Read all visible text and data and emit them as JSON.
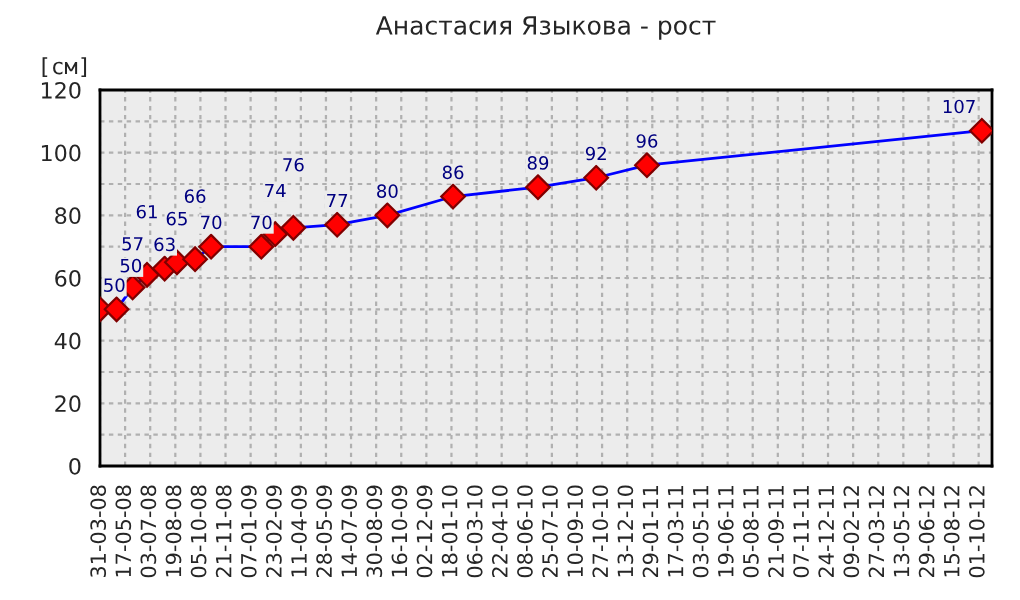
{
  "chart_data": {
    "type": "line",
    "title": "Анастасия Языкова - рост",
    "ylabel": "[см]",
    "x": [
      "2008-03-31",
      "2008-05-01",
      "2008-05-31",
      "2008-06-27",
      "2008-07-30",
      "2008-08-22",
      "2008-09-25",
      "2008-10-25",
      "2009-01-27",
      "2009-02-22",
      "2009-03-28",
      "2009-06-18",
      "2009-09-20",
      "2010-01-21",
      "2010-06-29",
      "2010-10-16",
      "2011-01-19",
      "2012-10-07"
    ],
    "series": [
      {
        "color": "#0000ff",
        "values": [
          50,
          50,
          57,
          61,
          63,
          65,
          66,
          70,
          70,
          74,
          76,
          77,
          80,
          86,
          89,
          92,
          96,
          107
        ]
      }
    ],
    "marker": "diamond",
    "data_labels": true,
    "grid": true,
    "ylim": [
      0,
      120
    ],
    "yticks": [
      0,
      {
        "value": 10,
        "label": null
      },
      20,
      {
        "value": 30,
        "label": null
      },
      40,
      {
        "value": 50,
        "label": null
      },
      60,
      {
        "value": 70,
        "label": null
      },
      80,
      {
        "value": 90,
        "label": null
      },
      100,
      {
        "value": 110,
        "label": null
      },
      120
    ],
    "xlim": [
      "2008-03-31",
      "2012-10-26"
    ],
    "xticks": [
      {
        "value": "2008-03-31",
        "label": "31-03-08"
      },
      {
        "value": "2008-05-17",
        "label": "17-05-08"
      },
      {
        "value": "2008-07-03",
        "label": "03-07-08"
      },
      {
        "value": "2008-08-19",
        "label": "19-08-08"
      },
      {
        "value": "2008-10-05",
        "label": "05-10-08"
      },
      {
        "value": "2008-11-21",
        "label": "21-11-08"
      },
      {
        "value": "2009-01-07",
        "label": "07-01-09"
      },
      {
        "value": "2009-02-23",
        "label": "23-02-09"
      },
      {
        "value": "2009-04-11",
        "label": "11-04-09"
      },
      {
        "value": "2009-05-28",
        "label": "28-05-09"
      },
      {
        "value": "2009-07-14",
        "label": "14-07-09"
      },
      {
        "value": "2009-08-30",
        "label": "30-08-09"
      },
      {
        "value": "2009-10-16",
        "label": "16-10-09"
      },
      {
        "value": "2009-12-02",
        "label": "02-12-09"
      },
      {
        "value": "2010-01-18",
        "label": "18-01-10"
      },
      {
        "value": "2010-03-06",
        "label": "06-03-10"
      },
      {
        "value": "2010-04-22",
        "label": "22-04-10"
      },
      {
        "value": "2010-06-08",
        "label": "08-06-10"
      },
      {
        "value": "2010-07-25",
        "label": "25-07-10"
      },
      {
        "value": "2010-09-10",
        "label": "10-09-10"
      },
      {
        "value": "2010-10-27",
        "label": "27-10-10"
      },
      {
        "value": "2010-12-13",
        "label": "13-12-10"
      },
      {
        "value": "2011-01-29",
        "label": "29-01-11"
      },
      {
        "value": "2011-03-17",
        "label": "17-03-11"
      },
      {
        "value": "2011-05-03",
        "label": "03-05-11"
      },
      {
        "value": "2011-06-19",
        "label": "19-06-11"
      },
      {
        "value": "2011-08-05",
        "label": "05-08-11"
      },
      {
        "value": "2011-09-21",
        "label": "21-09-11"
      },
      {
        "value": "2011-11-07",
        "label": "07-11-11"
      },
      {
        "value": "2011-12-24",
        "label": "24-12-11"
      },
      {
        "value": "2012-02-09",
        "label": "09-02-12"
      },
      {
        "value": "2012-03-27",
        "label": "27-03-12"
      },
      {
        "value": "2012-05-13",
        "label": "13-05-12"
      },
      {
        "value": "2012-06-29",
        "label": "29-06-12"
      },
      {
        "value": "2012-08-15",
        "label": "15-08-12"
      },
      {
        "value": "2012-10-01",
        "label": "01-10-12"
      }
    ]
  }
}
